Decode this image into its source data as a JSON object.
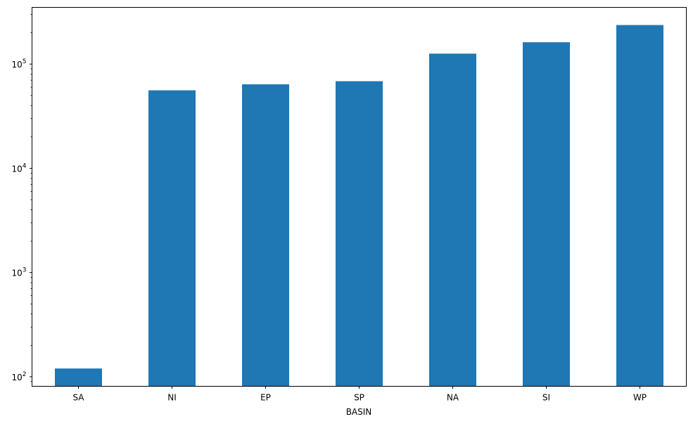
{
  "chart_data": {
    "type": "bar",
    "xlabel": "BASIN",
    "ylabel": "",
    "title": "",
    "categories": [
      "SA",
      "NI",
      "EP",
      "SP",
      "NA",
      "SI",
      "WP"
    ],
    "values": [
      120,
      56000,
      64000,
      68500,
      126000,
      162000,
      237000
    ],
    "yscale": "log",
    "ylim": [
      81,
      350000
    ],
    "y_ticks": [
      {
        "value": 100,
        "base": "10",
        "exp": "2"
      },
      {
        "value": 1000,
        "base": "10",
        "exp": "3"
      },
      {
        "value": 10000,
        "base": "10",
        "exp": "4"
      },
      {
        "value": 100000,
        "base": "10",
        "exp": "5"
      }
    ],
    "grid": false,
    "legend": "none",
    "bar_color": "#1f77b4"
  }
}
